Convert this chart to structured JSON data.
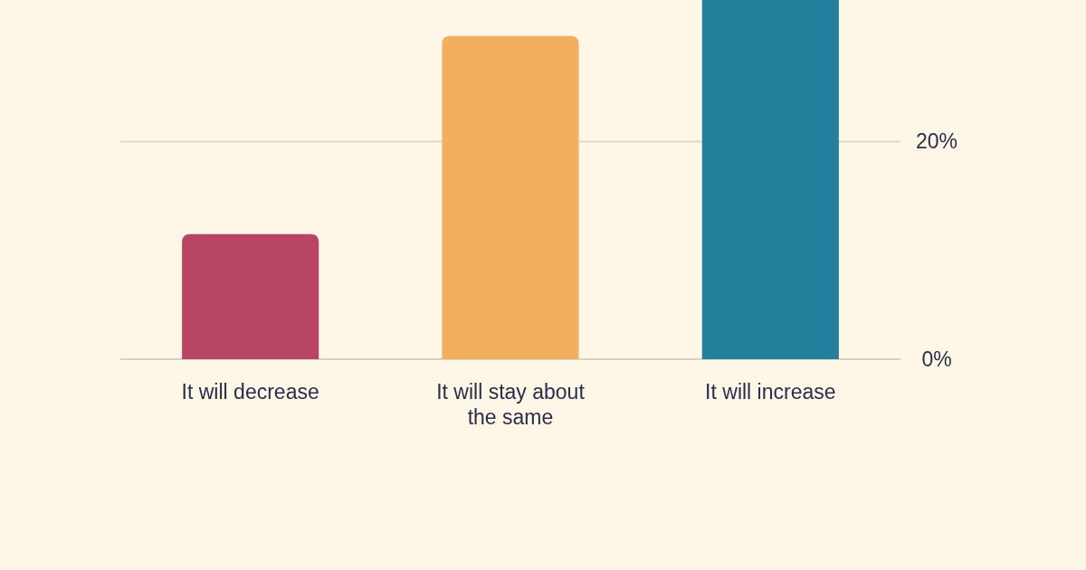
{
  "chart_data": {
    "type": "bar",
    "categories": [
      "It will decrease",
      "It will stay about the same",
      "It will increase"
    ],
    "values": [
      11.5,
      29.7,
      33
    ],
    "colors": [
      "#b94565",
      "#f2b05e",
      "#23809c"
    ],
    "ylim": [
      0,
      33
    ],
    "yticks": [
      {
        "value": 0,
        "label": "0%"
      },
      {
        "value": 20,
        "label": "20%"
      }
    ],
    "grid": "y"
  }
}
